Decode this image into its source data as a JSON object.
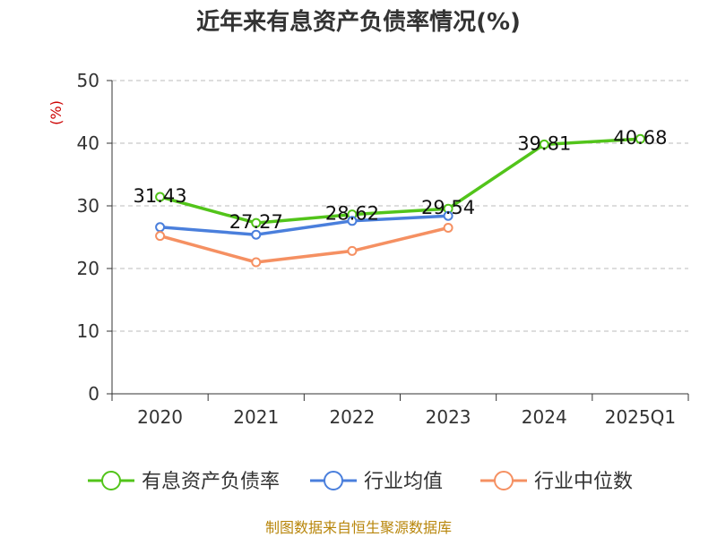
{
  "chart_data": {
    "type": "line",
    "title": "近年来有息资产负债率情况(%)",
    "unit_label": "(%)",
    "categories": [
      "2020",
      "2021",
      "2022",
      "2023",
      "2024",
      "2025Q1"
    ],
    "ylim": [
      0,
      50
    ],
    "yticks": [
      0,
      10,
      20,
      30,
      40,
      50
    ],
    "grid": true,
    "legend_position": "bottom",
    "series": [
      {
        "name": "有息资产负债率",
        "color": "#52c41a",
        "values": [
          31.43,
          27.27,
          28.62,
          29.54,
          39.81,
          40.68
        ],
        "labels": [
          "31.43",
          "27.27",
          "28.62",
          "29.54",
          "39.81",
          "40.68"
        ]
      },
      {
        "name": "行业均值",
        "color": "#4a7fdc",
        "values": [
          26.6,
          25.4,
          27.6,
          28.4,
          null,
          null
        ]
      },
      {
        "name": "行业中位数",
        "color": "#f59062",
        "values": [
          25.2,
          21.0,
          22.8,
          26.5,
          null,
          null
        ]
      }
    ],
    "source": "制图数据来自恒生聚源数据库"
  }
}
